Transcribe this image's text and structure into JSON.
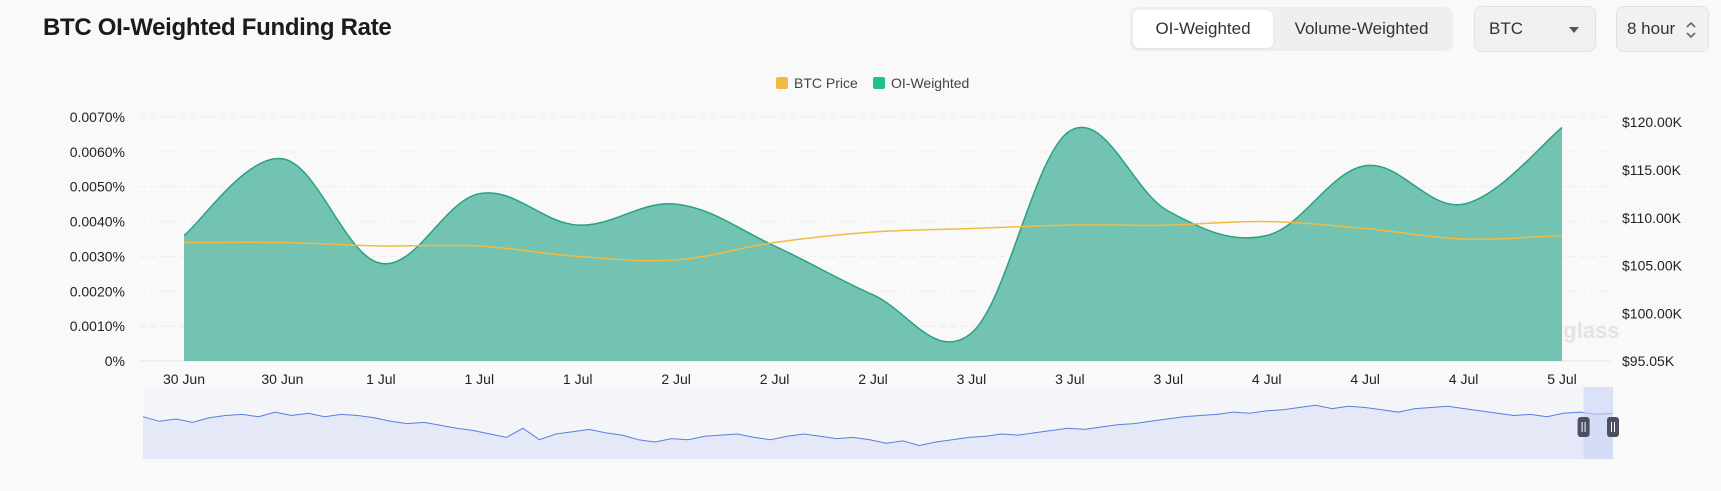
{
  "header": {
    "title": "BTC OI-Weighted Funding Rate",
    "tabs": [
      {
        "label": "OI-Weighted",
        "active": true
      },
      {
        "label": "Volume-Weighted",
        "active": false
      }
    ],
    "coin_select": {
      "value": "BTC"
    },
    "interval_select": {
      "value": "8 hour"
    }
  },
  "colors": {
    "price": "#f0bb45",
    "oi_weighted": "#1fbf8f",
    "area_fill": "#72c3b1",
    "area_stroke": "#27a283",
    "navigator_line": "#5a7fe0",
    "navigator_fill": "#e4e8f7"
  },
  "watermark": "coinglass",
  "chart_data": {
    "type": "area",
    "title": "BTC OI-Weighted Funding Rate",
    "legend": {
      "position": "top-center",
      "items": [
        {
          "name": "BTC Price",
          "color": "#f0bb45"
        },
        {
          "name": "OI-Weighted",
          "color": "#1fbf8f"
        }
      ]
    },
    "x_tick_labels": [
      "30 Jun",
      "30 Jun",
      "1 Jul",
      "1 Jul",
      "1 Jul",
      "2 Jul",
      "2 Jul",
      "2 Jul",
      "3 Jul",
      "3 Jul",
      "3 Jul",
      "4 Jul",
      "4 Jul",
      "4 Jul",
      "5 Jul"
    ],
    "y_left": {
      "ticks": [
        "0%",
        "0.0010%",
        "0.0020%",
        "0.0030%",
        "0.0040%",
        "0.0050%",
        "0.0060%",
        "0.0070%"
      ],
      "range": [
        0,
        0.007
      ],
      "unit": "%"
    },
    "y_right": {
      "ticks": [
        "$95.05K",
        "$100.00K",
        "$105.00K",
        "$110.00K",
        "$115.00K",
        "$120.00K"
      ],
      "range": [
        95050,
        120000
      ]
    },
    "grid": true,
    "series": [
      {
        "name": "OI-Weighted",
        "type": "area",
        "axis": "left",
        "values": [
          0.0036,
          0.0058,
          0.0028,
          0.0048,
          0.0039,
          0.0045,
          0.0033,
          0.0019,
          0.0008,
          0.0066,
          0.0043,
          0.0036,
          0.0056,
          0.0045,
          0.0067
        ]
      },
      {
        "name": "BTC Price",
        "type": "line",
        "axis": "left",
        "values": [
          0.0034,
          0.0034,
          0.0033,
          0.0033,
          0.003,
          0.0029,
          0.0034,
          0.0037,
          0.0038,
          0.0039,
          0.0039,
          0.004,
          0.0038,
          0.0035,
          0.0036
        ]
      }
    ],
    "navigator": {
      "window": [
        0.98,
        1.0
      ],
      "values": [
        0.7,
        0.62,
        0.66,
        0.6,
        0.68,
        0.72,
        0.74,
        0.7,
        0.78,
        0.72,
        0.76,
        0.7,
        0.74,
        0.72,
        0.68,
        0.62,
        0.58,
        0.6,
        0.55,
        0.5,
        0.46,
        0.4,
        0.34,
        0.5,
        0.3,
        0.4,
        0.44,
        0.48,
        0.42,
        0.38,
        0.3,
        0.26,
        0.32,
        0.3,
        0.36,
        0.38,
        0.4,
        0.34,
        0.3,
        0.36,
        0.4,
        0.36,
        0.32,
        0.34,
        0.3,
        0.24,
        0.28,
        0.2,
        0.26,
        0.3,
        0.34,
        0.36,
        0.4,
        0.38,
        0.42,
        0.46,
        0.5,
        0.48,
        0.52,
        0.56,
        0.58,
        0.62,
        0.66,
        0.7,
        0.72,
        0.74,
        0.78,
        0.76,
        0.8,
        0.82,
        0.86,
        0.9,
        0.84,
        0.88,
        0.86,
        0.82,
        0.78,
        0.84,
        0.86,
        0.88,
        0.84,
        0.8,
        0.76,
        0.72,
        0.74,
        0.7,
        0.76,
        0.78,
        0.74,
        0.76
      ]
    }
  }
}
